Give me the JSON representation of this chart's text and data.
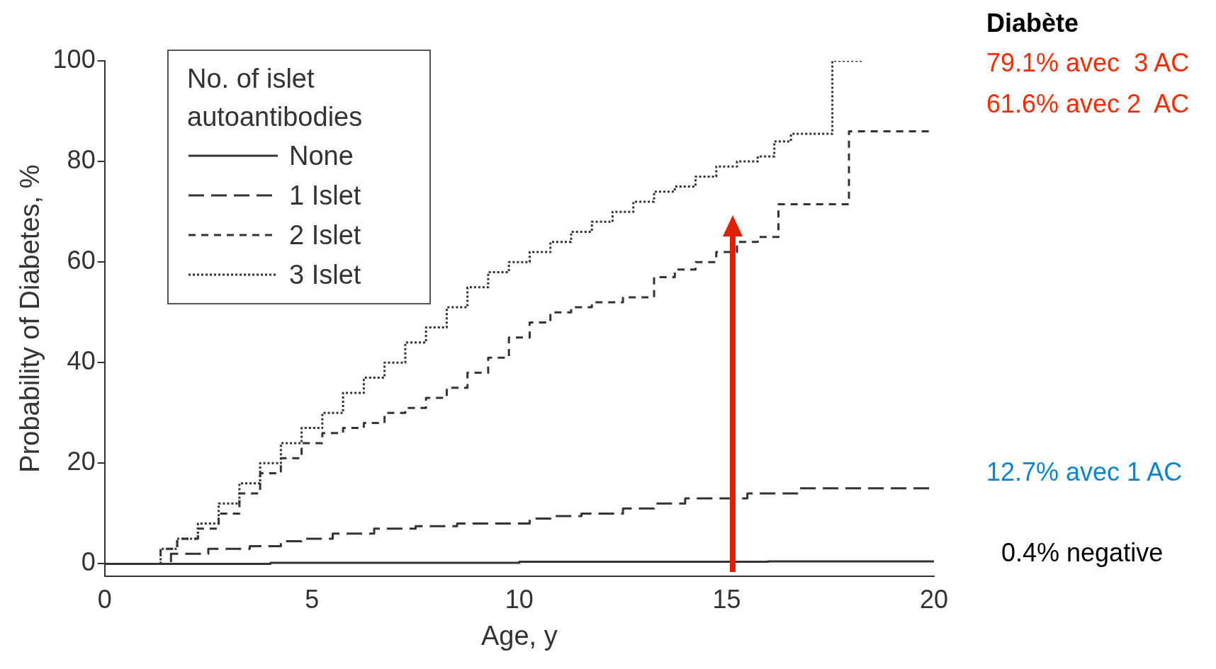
{
  "chart_data": {
    "type": "step",
    "xlabel": "Age, y",
    "ylabel": "Probability of Diabetes, %",
    "legend_title": "No. of islet autoantibodies",
    "legend": "top left",
    "grid": false,
    "xlim": [
      0,
      20
    ],
    "xticks": [
      0,
      5,
      10,
      15,
      20
    ],
    "ylim": [
      -2.5,
      100
    ],
    "yticks": [
      0,
      20,
      40,
      60,
      80,
      100
    ],
    "series": [
      {
        "name": "None",
        "color": "#333333",
        "line_style": "solid",
        "x": [
          0,
          8,
          12,
          20
        ],
        "values": [
          0,
          0.2,
          0.4,
          0.5
        ]
      },
      {
        "name": "1 Islet",
        "color": "#333333",
        "line_style": "dashed",
        "x": [
          0,
          1.2,
          2,
          3,
          4,
          4.5,
          5,
          6,
          7,
          8,
          9,
          10,
          10.5,
          11,
          12,
          13,
          13.5,
          14.5,
          16.5,
          17,
          20
        ],
        "values": [
          0,
          0,
          2,
          3,
          3.5,
          4.5,
          5,
          6,
          7,
          7.5,
          8,
          8,
          9,
          9.5,
          10,
          11,
          12,
          13,
          14,
          15,
          15
        ]
      },
      {
        "name": "2 Islet",
        "color": "#333333",
        "line_style": "dashed",
        "x": [
          0,
          1.2,
          1.5,
          2,
          2.5,
          3,
          3.5,
          4,
          4.5,
          5,
          5.5,
          6,
          6.5,
          7,
          7.5,
          8,
          8.5,
          9,
          9.5,
          10,
          10.5,
          11,
          11.5,
          12,
          13,
          13.5,
          14,
          14.5,
          15,
          15.5,
          16,
          16.5,
          19.4,
          20
        ],
        "values": [
          0,
          0,
          3,
          5,
          7,
          10,
          14,
          18,
          21,
          24,
          26,
          27,
          28,
          30,
          31,
          33,
          35,
          38,
          41,
          45,
          48,
          50,
          51,
          52,
          53,
          57,
          58.5,
          60,
          62,
          64,
          65,
          71.5,
          86,
          86
        ]
      },
      {
        "name": "3 Islet",
        "color": "#333333",
        "line_style": "dotted",
        "x": [
          0,
          1.2,
          1.5,
          2,
          2.5,
          3,
          3.5,
          4,
          4.5,
          5,
          5.5,
          6,
          6.5,
          7,
          7.5,
          8,
          8.5,
          9,
          9.5,
          10,
          10.5,
          11,
          11.5,
          12,
          12.5,
          13,
          13.5,
          14,
          14.5,
          15,
          15.5,
          16,
          16.3,
          16.8,
          18.3
        ],
        "values": [
          0,
          0,
          3,
          5,
          8,
          12,
          16,
          20,
          24,
          27,
          30,
          34,
          37,
          40,
          44,
          47,
          51,
          55,
          58,
          60,
          62,
          64,
          66,
          68,
          70,
          72,
          74,
          75,
          77,
          79,
          80,
          81,
          84,
          85.5,
          100
        ]
      }
    ],
    "annotations": [
      "Diabète",
      "79.1% avec  3 AC",
      "61.6% avec 2  AC",
      "12.7% avec 1 AC",
      "0.4% negative"
    ]
  }
}
